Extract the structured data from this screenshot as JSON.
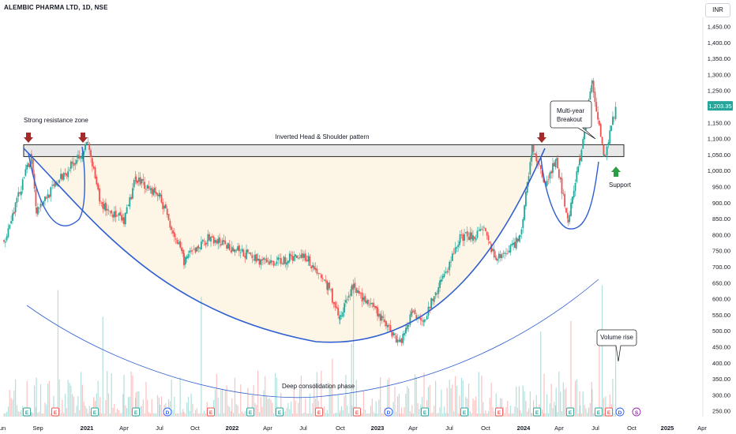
{
  "header": {
    "symbol_line": "ALEMBIC PHARMA LTD, 1D, NSE",
    "currency": "INR"
  },
  "price_tag": {
    "value": "1,203.35"
  },
  "colors": {
    "up": "#26a69a",
    "down": "#ef5350",
    "curve": "#2f5fd0",
    "arrow_down": "#a52a2a",
    "arrow_up": "#2e9e46",
    "fill": "#fdf6e6",
    "zone": "#e8e8e8"
  },
  "annotations": {
    "resistance": "Strong resistance zone",
    "pattern": "Inverted Head & Shoulder pattern",
    "breakout": [
      "Multi-year",
      "Breakout"
    ],
    "support": "Support",
    "volume": "Volume rise",
    "consolidation": "Deep consolidation phase"
  },
  "event_markers": [
    "E",
    "E",
    "E",
    "E",
    "D",
    "E",
    "E",
    "E",
    "E",
    "E",
    "D",
    "E",
    "E",
    "E",
    "E",
    "E",
    "E",
    "E",
    "D",
    "S",
    "E"
  ],
  "chart_data": {
    "type": "candlestick",
    "title": "ALEMBIC PHARMA LTD, 1D, NSE",
    "x_tick_labels": [
      "un",
      "Sep",
      "2021",
      "Apr",
      "Jul",
      "Oct",
      "2022",
      "Apr",
      "Jul",
      "Oct",
      "2023",
      "Apr",
      "Jul",
      "Oct",
      "2024",
      "Apr",
      "Jul",
      "Oct",
      "2025",
      "Apr"
    ],
    "y_tick_labels": [
      "1,450.00",
      "1,400.00",
      "1,350.00",
      "1,300.00",
      "1,250.00",
      "1,200.00",
      "1,150.00",
      "1,100.00",
      "1,050.00",
      "1,000.00",
      "950.00",
      "900.00",
      "850.00",
      "800.00",
      "750.00",
      "700.00",
      "650.00",
      "600.00",
      "550.00",
      "500.00",
      "450.00",
      "400.00",
      "350.00",
      "300.00",
      "250.00"
    ],
    "ylim": [
      237,
      1500
    ],
    "resistance_zone": [
      1045,
      1082
    ],
    "last_price": 1203.35,
    "price_path_key_points": [
      {
        "date": "Jun 2020",
        "price": 780
      },
      {
        "date": "Aug 2020",
        "price": 1050
      },
      {
        "date": "Aug 2020",
        "price": 880
      },
      {
        "date": "Jan 2021",
        "price": 1085
      },
      {
        "date": "Feb 2021",
        "price": 900
      },
      {
        "date": "Apr 2021",
        "price": 840
      },
      {
        "date": "May 2021",
        "price": 980
      },
      {
        "date": "Jul 2021",
        "price": 920
      },
      {
        "date": "Sep 2021",
        "price": 720
      },
      {
        "date": "Nov 2021",
        "price": 790
      },
      {
        "date": "Jan 2022",
        "price": 760
      },
      {
        "date": "Apr 2022",
        "price": 710
      },
      {
        "date": "Jul 2022",
        "price": 740
      },
      {
        "date": "Sep 2022",
        "price": 640
      },
      {
        "date": "Oct 2022",
        "price": 540
      },
      {
        "date": "Nov 2022",
        "price": 640
      },
      {
        "date": "Jan 2023",
        "price": 560
      },
      {
        "date": "Mar 2023",
        "price": 465
      },
      {
        "date": "Apr 2023",
        "price": 560
      },
      {
        "date": "May 2023",
        "price": 540
      },
      {
        "date": "Jul 2023",
        "price": 700
      },
      {
        "date": "Aug 2023",
        "price": 790
      },
      {
        "date": "Oct 2023",
        "price": 810
      },
      {
        "date": "Nov 2023",
        "price": 720
      },
      {
        "date": "Jan 2024",
        "price": 790
      },
      {
        "date": "Feb 2024",
        "price": 1075
      },
      {
        "date": "Mar 2024",
        "price": 960
      },
      {
        "date": "Apr 2024",
        "price": 1030
      },
      {
        "date": "May 2024",
        "price": 850
      },
      {
        "date": "Jun 2024",
        "price": 1040
      },
      {
        "date": "Jul 2024",
        "price": 1280
      },
      {
        "date": "Aug 2024",
        "price": 1040
      },
      {
        "date": "Sep 2024",
        "price": 1203
      }
    ]
  }
}
